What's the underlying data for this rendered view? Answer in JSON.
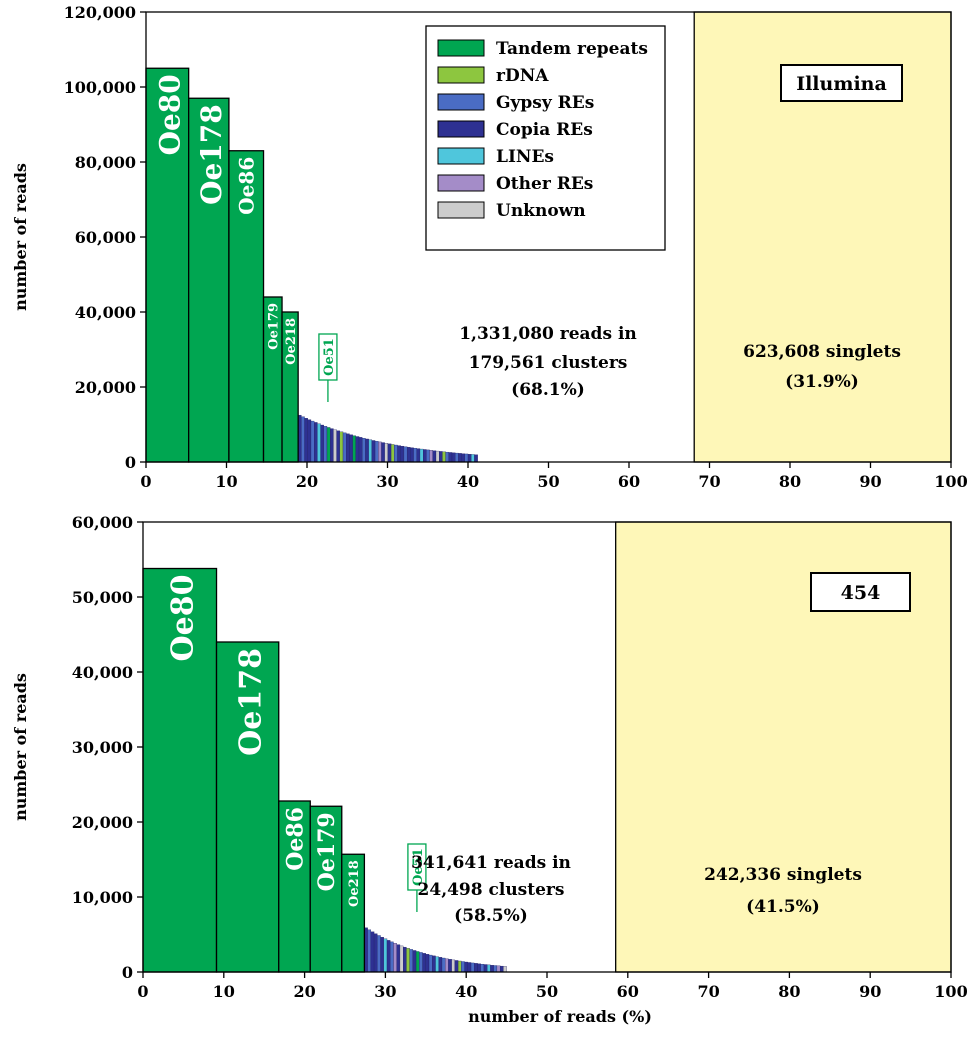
{
  "colors": {
    "tandem": "#00a651",
    "rdna": "#8dc63f",
    "gypsy": "#4a6cc4",
    "copia": "#2e3192",
    "lines": "#4fc6dc",
    "other": "#a48cc8",
    "unknown": "#cccccc",
    "singlets": "#fef7b8"
  },
  "legend": {
    "items": [
      {
        "label": "Tandem repeats",
        "color": "#00a651"
      },
      {
        "label": "rDNA",
        "color": "#8dc63f"
      },
      {
        "label": "Gypsy REs",
        "color": "#4a6cc4"
      },
      {
        "label": "Copia REs",
        "color": "#2e3192"
      },
      {
        "label": "LINEs",
        "color": "#4fc6dc"
      },
      {
        "label": "Other REs",
        "color": "#a48cc8"
      },
      {
        "label": "Unknown",
        "color": "#cccccc"
      }
    ]
  },
  "chart_data": [
    {
      "type": "bar",
      "badge": "Illumina",
      "xlabel": "",
      "ylabel": "number of reads",
      "xlim": [
        0,
        100
      ],
      "ylim": [
        0,
        120000
      ],
      "xticks": [
        0,
        10,
        20,
        30,
        40,
        50,
        60,
        70,
        80,
        90,
        100
      ],
      "yticks": [
        "0",
        "20,000",
        "40,000",
        "60,000",
        "80,000",
        "100,000",
        "120,000"
      ],
      "clusters_text": [
        "1,331,080 reads in",
        "179,561 clusters",
        "(68.1%)"
      ],
      "singlets_text": [
        "623,608 singlets",
        "(31.9%)"
      ],
      "singlets_range": [
        68.1,
        100
      ],
      "labelled_bars": [
        {
          "label": "Oe80",
          "x0": 0,
          "x1": 5.3,
          "value": 105000
        },
        {
          "label": "Oe178",
          "x0": 5.3,
          "x1": 10.3,
          "value": 97000
        },
        {
          "label": "Oe86",
          "x0": 10.3,
          "x1": 14.6,
          "value": 83000
        },
        {
          "label": "Oe179",
          "x0": 14.6,
          "x1": 16.9,
          "value": 44000
        },
        {
          "label": "Oe218",
          "x0": 16.9,
          "x1": 18.9,
          "value": 40000
        }
      ],
      "callout": {
        "label": "Oe51",
        "x": 22.6
      },
      "tail": {
        "x0": 18.9,
        "x1": 41.2,
        "y0": 12500,
        "decay": 0.085,
        "tandem_positions": [
          22.6,
          26.0
        ]
      }
    },
    {
      "type": "bar",
      "badge": "454",
      "xlabel": "number of reads (%)",
      "ylabel": "number of reads",
      "xlim": [
        0,
        100
      ],
      "ylim": [
        0,
        60000
      ],
      "xticks": [
        0,
        10,
        20,
        30,
        40,
        50,
        60,
        70,
        80,
        90,
        100
      ],
      "yticks": [
        "0",
        "10,000",
        "20,000",
        "30,000",
        "40,000",
        "50,000",
        "60,000"
      ],
      "clusters_text": [
        "341,641 reads in",
        "24,498 clusters",
        "(58.5%)"
      ],
      "singlets_text": [
        "242,336 singlets",
        "(41.5%)"
      ],
      "singlets_range": [
        58.5,
        100
      ],
      "labelled_bars": [
        {
          "label": "Oe80",
          "x0": 0,
          "x1": 9.1,
          "value": 53800
        },
        {
          "label": "Oe178",
          "x0": 9.1,
          "x1": 16.8,
          "value": 44000
        },
        {
          "label": "Oe86",
          "x0": 16.8,
          "x1": 20.7,
          "value": 22800
        },
        {
          "label": "Oe179",
          "x0": 20.7,
          "x1": 24.6,
          "value": 22100
        },
        {
          "label": "Oe218",
          "x0": 24.6,
          "x1": 27.4,
          "value": 15700
        }
      ],
      "callout": {
        "label": "Oe51",
        "x": 33.9
      },
      "tail": {
        "x0": 27.4,
        "x1": 45.0,
        "y0": 5900,
        "decay": 0.12,
        "tandem_positions": [
          33.9
        ]
      }
    }
  ]
}
